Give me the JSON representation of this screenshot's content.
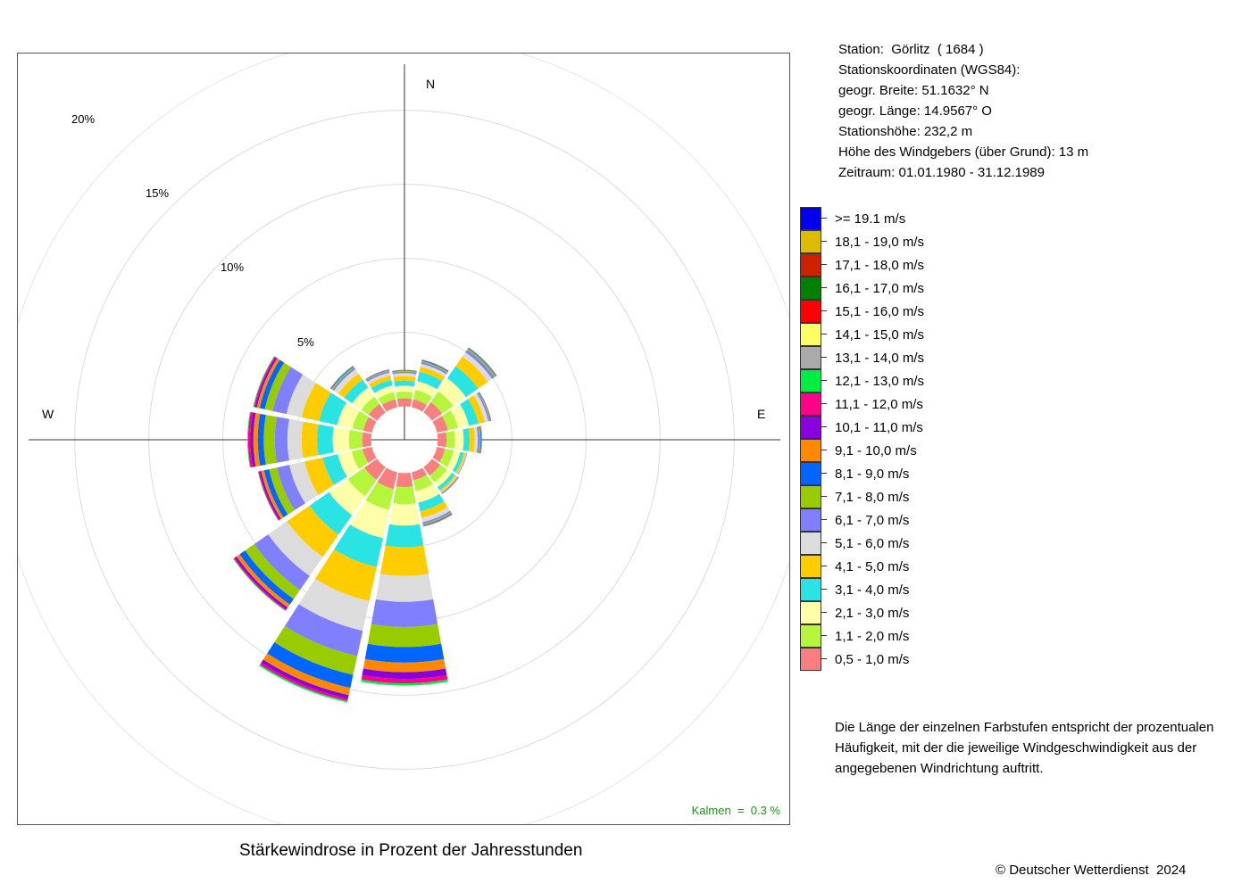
{
  "chart_data": {
    "type": "windrose",
    "title": "Stärkewindrose in Prozent der Jahresstunden",
    "directions": [
      "N",
      "NNO",
      "NO",
      "ONO",
      "O",
      "OSO",
      "SO",
      "SSO",
      "S",
      "SSW",
      "SW",
      "WSW",
      "W",
      "WNW",
      "NW",
      "NNW"
    ],
    "direction_angles_deg": [
      0,
      22.5,
      45,
      67.5,
      90,
      112.5,
      135,
      157.5,
      180,
      202.5,
      225,
      247.5,
      270,
      292.5,
      315,
      337.5
    ],
    "cardinal_labels": {
      "N": "N",
      "E": "E",
      "W": "W"
    },
    "radial_unit": "%",
    "radial_ticks": [
      5,
      10,
      15,
      20
    ],
    "radial_tick_labels": [
      "5%",
      "10%",
      "15%",
      "20%"
    ],
    "calm_offset_percent": 2.25,
    "legend_title": "",
    "speed_classes": [
      {
        "label": "0,5 - 1,0 m/s",
        "color": "#f87f7f"
      },
      {
        "label": "1,1 - 2,0 m/s",
        "color": "#b5f53c"
      },
      {
        "label": "2,1 - 3,0 m/s",
        "color": "#ffffaa"
      },
      {
        "label": "3,1 - 4,0 m/s",
        "color": "#2ae4e4"
      },
      {
        "label": "4,1 - 5,0 m/s",
        "color": "#ffcc00"
      },
      {
        "label": "5,1 - 6,0 m/s",
        "color": "#dcdcdc"
      },
      {
        "label": "6,1 - 7,0 m/s",
        "color": "#8080ff"
      },
      {
        "label": "7,1 - 8,0 m/s",
        "color": "#99cc00"
      },
      {
        "label": "8,1 - 9,0 m/s",
        "color": "#0066ff"
      },
      {
        "label": "9,1 - 10,0 m/s",
        "color": "#ff8800"
      },
      {
        "label": "10,1 - 11,0 m/s",
        "color": "#8800dd"
      },
      {
        "label": "11,1 - 12,0 m/s",
        "color": "#ff0088"
      },
      {
        "label": "12,1 - 13,0 m/s",
        "color": "#00ee44"
      },
      {
        "label": "13,1 - 14,0 m/s",
        "color": "#aaaaaa"
      },
      {
        "label": "14,1 - 15,0 m/s",
        "color": "#ffff66"
      },
      {
        "label": "15,1 - 16,0 m/s",
        "color": "#ff0000"
      },
      {
        "label": "16,1 - 17,0 m/s",
        "color": "#008000"
      },
      {
        "label": "17,1 - 18,0 m/s",
        "color": "#cc2200"
      },
      {
        "label": "18,1 - 19,0 m/s",
        "color": "#ddbb00"
      },
      {
        "label": ">= 19.1 m/s",
        "color": "#0000ee"
      }
    ],
    "series": [
      {
        "direction": "N",
        "values": [
          0.55,
          0.45,
          0.4,
          0.35,
          0.3,
          0.2,
          0.1,
          0.05,
          0.03,
          0.02,
          0.01,
          0.01,
          0.01,
          0,
          0,
          0,
          0,
          0,
          0,
          0
        ]
      },
      {
        "direction": "NNO",
        "values": [
          0.55,
          0.65,
          0.6,
          0.65,
          0.35,
          0.2,
          0.12,
          0.08,
          0.05,
          0.02,
          0.01,
          0.01,
          0.01,
          0,
          0,
          0,
          0,
          0,
          0,
          0
        ]
      },
      {
        "direction": "NO",
        "values": [
          0.85,
          0.9,
          1.05,
          1.0,
          0.8,
          0.35,
          0.2,
          0.1,
          0.05,
          0.02,
          0.01,
          0.01,
          0.01,
          0,
          0,
          0,
          0,
          0,
          0,
          0
        ]
      },
      {
        "direction": "ONO",
        "values": [
          0.75,
          0.7,
          0.75,
          0.65,
          0.45,
          0.25,
          0.1,
          0.05,
          0.03,
          0.01,
          0.01,
          0.01,
          0,
          0,
          0,
          0,
          0,
          0,
          0,
          0
        ]
      },
      {
        "direction": "O",
        "values": [
          0.6,
          0.55,
          0.6,
          0.4,
          0.35,
          0.2,
          0.12,
          0.08,
          0.05,
          0.02,
          0.01,
          0.01,
          0,
          0,
          0,
          0,
          0,
          0,
          0,
          0
        ]
      },
      {
        "direction": "OSO",
        "values": [
          0.55,
          0.6,
          0.45,
          0.25,
          0.12,
          0.05,
          0.03,
          0.02,
          0.01,
          0,
          0,
          0,
          0,
          0,
          0,
          0,
          0,
          0,
          0,
          0
        ]
      },
      {
        "direction": "SO",
        "values": [
          0.7,
          0.55,
          0.4,
          0.25,
          0.12,
          0.08,
          0.05,
          0.03,
          0.02,
          0.01,
          0.01,
          0,
          0,
          0,
          0,
          0,
          0,
          0,
          0,
          0
        ]
      },
      {
        "direction": "SSO",
        "values": [
          0.55,
          0.75,
          0.8,
          0.6,
          0.45,
          0.3,
          0.12,
          0.08,
          0.05,
          0.03,
          0.01,
          0.01,
          0,
          0,
          0,
          0,
          0,
          0,
          0,
          0
        ]
      },
      {
        "direction": "S",
        "values": [
          0.95,
          1.15,
          1.45,
          1.45,
          1.95,
          1.75,
          1.7,
          1.35,
          1.05,
          0.65,
          0.45,
          0.3,
          0.15,
          0,
          0,
          0,
          0,
          0,
          0,
          0
        ]
      },
      {
        "direction": "SSW",
        "values": [
          1.15,
          1.45,
          1.95,
          2.0,
          2.35,
          2.05,
          1.75,
          1.3,
          0.9,
          0.5,
          0.25,
          0.15,
          0.1,
          0,
          0,
          0,
          0,
          0,
          0,
          0
        ]
      },
      {
        "direction": "SW",
        "values": [
          1.05,
          1.35,
          1.55,
          1.6,
          1.85,
          1.55,
          1.15,
          0.75,
          0.45,
          0.25,
          0.15,
          0.08,
          0.05,
          0,
          0,
          0,
          0,
          0,
          0,
          0
        ]
      },
      {
        "direction": "WSW",
        "values": [
          0.65,
          0.75,
          0.95,
          1.05,
          1.25,
          1.05,
          0.85,
          0.55,
          0.35,
          0.2,
          0.12,
          0.07,
          0.03,
          0,
          0,
          0,
          0,
          0,
          0,
          0
        ]
      },
      {
        "direction": "W",
        "values": [
          0.6,
          0.9,
          1.1,
          1.05,
          1.05,
          0.95,
          0.85,
          0.75,
          0.4,
          0.3,
          0.2,
          0.15,
          0.05,
          0,
          0,
          0,
          0,
          0,
          0,
          0
        ]
      },
      {
        "direction": "WNW",
        "values": [
          0.6,
          0.75,
          1.05,
          1.25,
          1.2,
          1.05,
          0.95,
          0.55,
          0.35,
          0.2,
          0.12,
          0.08,
          0.05,
          0,
          0,
          0,
          0,
          0,
          0,
          0
        ]
      },
      {
        "direction": "NW",
        "values": [
          0.7,
          0.6,
          0.75,
          0.65,
          0.5,
          0.35,
          0.12,
          0.08,
          0.05,
          0.02,
          0.01,
          0.01,
          0.01,
          0,
          0,
          0,
          0,
          0,
          0,
          0
        ]
      },
      {
        "direction": "NNW",
        "values": [
          0.55,
          0.5,
          0.45,
          0.4,
          0.3,
          0.2,
          0.1,
          0.05,
          0.03,
          0.02,
          0.01,
          0.01,
          0.01,
          0,
          0,
          0,
          0,
          0,
          0,
          0
        ]
      }
    ],
    "calm": "Kalmen  =  0.3 %",
    "grid": true
  },
  "station": {
    "lines": [
      "Station:  Görlitz  ( 1684 )",
      "Stationskoordinaten (WGS84):",
      "geogr. Breite: 51.1632° N",
      "geogr. Länge: 14.9567° O",
      "Stationshöhe: 232,2 m",
      "Höhe des Windgebers (über Grund): 13 m",
      "Zeitraum: 01.01.1980 - 31.12.1989"
    ]
  },
  "note": {
    "lines": [
      "Die Länge der einzelnen Farbstufen entspricht der prozentualen",
      "Häufigkeit, mit der die jeweilige Windgeschwindigkeit aus der",
      "angegebenen Windrichtung auftritt."
    ]
  },
  "copyright": "© Deutscher Wetterdienst  2024"
}
